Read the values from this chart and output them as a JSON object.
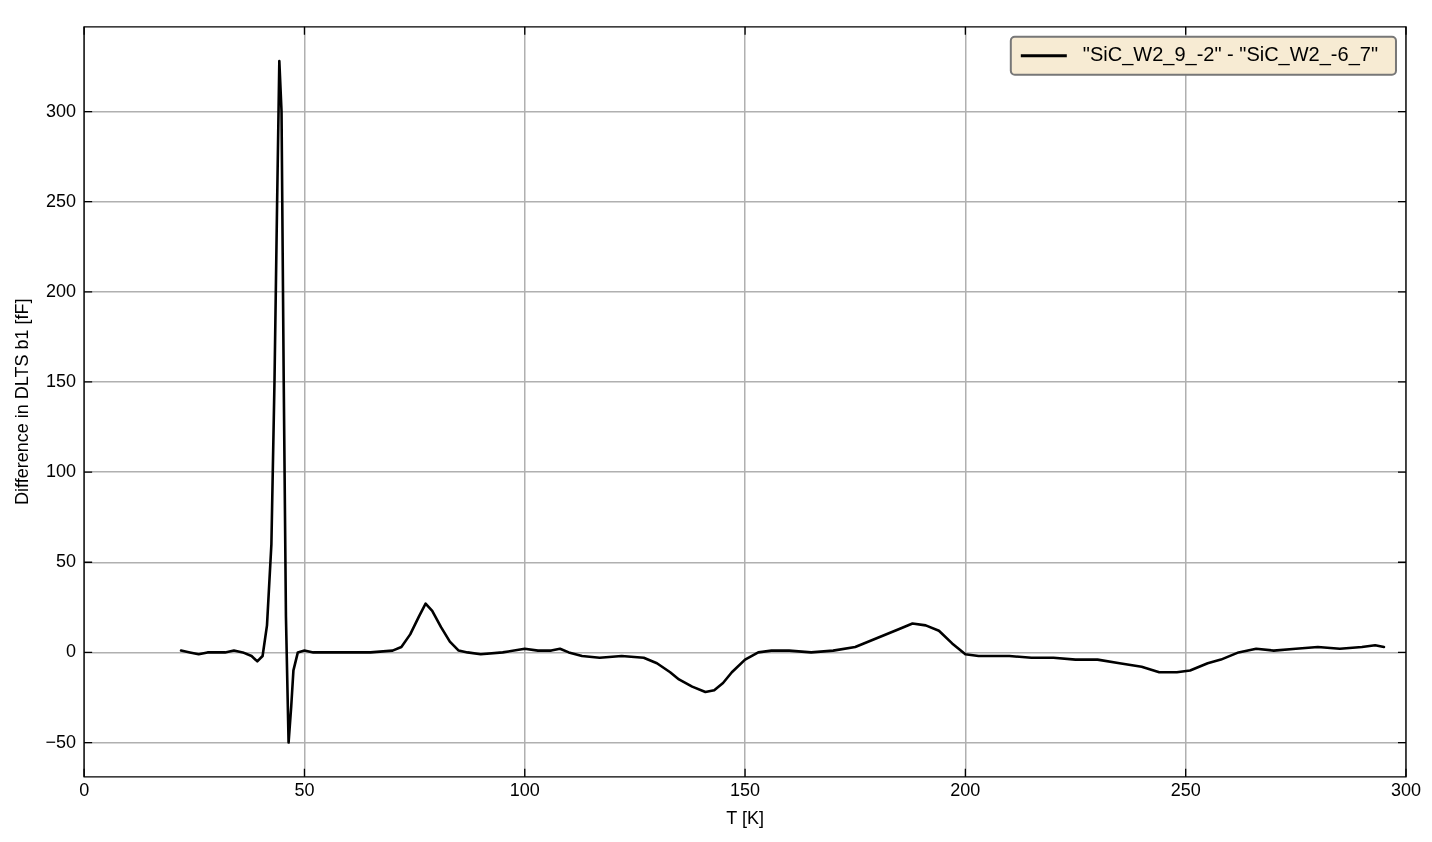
{
  "chart_data": {
    "type": "line",
    "xlabel": "T [K]",
    "ylabel": "Difference in DLTS b1 [fF]",
    "xlim": [
      0,
      300
    ],
    "xticks": [
      0,
      50,
      100,
      150,
      200,
      250,
      300
    ],
    "ylim": [
      -69,
      347
    ],
    "yticks": [
      -50,
      0,
      50,
      100,
      150,
      200,
      250,
      300
    ],
    "grid": true,
    "legend": "top right",
    "marker": "none",
    "line_style": "solid",
    "series": [
      {
        "name": "\"SiC_W2_9_-2\" - \"SiC_W2_-6_7\"",
        "color": "#000000",
        "x": [
          22,
          24,
          26,
          28,
          30,
          32,
          34,
          36,
          38,
          39.3,
          40.5,
          41.5,
          42.5,
          43.2,
          43.8,
          44.3,
          44.8,
          45.3,
          45.8,
          46.4,
          47,
          47.5,
          48.5,
          50,
          52,
          55,
          60,
          65,
          70,
          72,
          74,
          76,
          77.5,
          79,
          81,
          83,
          85,
          87,
          90,
          95,
          100,
          103,
          106,
          108,
          110,
          113,
          117,
          122,
          127,
          130,
          133,
          135,
          138,
          141,
          143,
          145,
          147,
          150,
          153,
          156,
          160,
          165,
          170,
          175,
          180,
          185,
          188,
          191,
          194,
          197,
          200,
          203,
          207,
          210,
          215,
          220,
          225,
          230,
          235,
          240,
          244,
          248,
          251,
          255,
          258,
          262,
          266,
          270,
          275,
          280,
          285,
          290,
          293,
          295
        ],
        "values": [
          1,
          0,
          -1,
          0,
          0,
          0,
          1,
          0,
          -2,
          -5,
          -2,
          15,
          60,
          150,
          250,
          328,
          300,
          150,
          20,
          -50,
          -30,
          -10,
          0,
          1,
          0,
          0,
          0,
          0,
          1,
          3,
          10,
          20,
          27,
          23,
          14,
          6,
          1,
          0,
          -1,
          0,
          2,
          1,
          1,
          2,
          0,
          -2,
          -3,
          -2,
          -3,
          -6,
          -11,
          -15,
          -19,
          -22,
          -21,
          -17,
          -11,
          -4,
          0,
          1,
          1,
          0,
          1,
          3,
          8,
          13,
          16,
          15,
          12,
          5,
          -1,
          -2,
          -2,
          -2,
          -3,
          -3,
          -4,
          -4,
          -6,
          -8,
          -11,
          -11,
          -10,
          -6,
          -4,
          0,
          2,
          1,
          2,
          3,
          2,
          3,
          4,
          3
        ]
      }
    ]
  }
}
